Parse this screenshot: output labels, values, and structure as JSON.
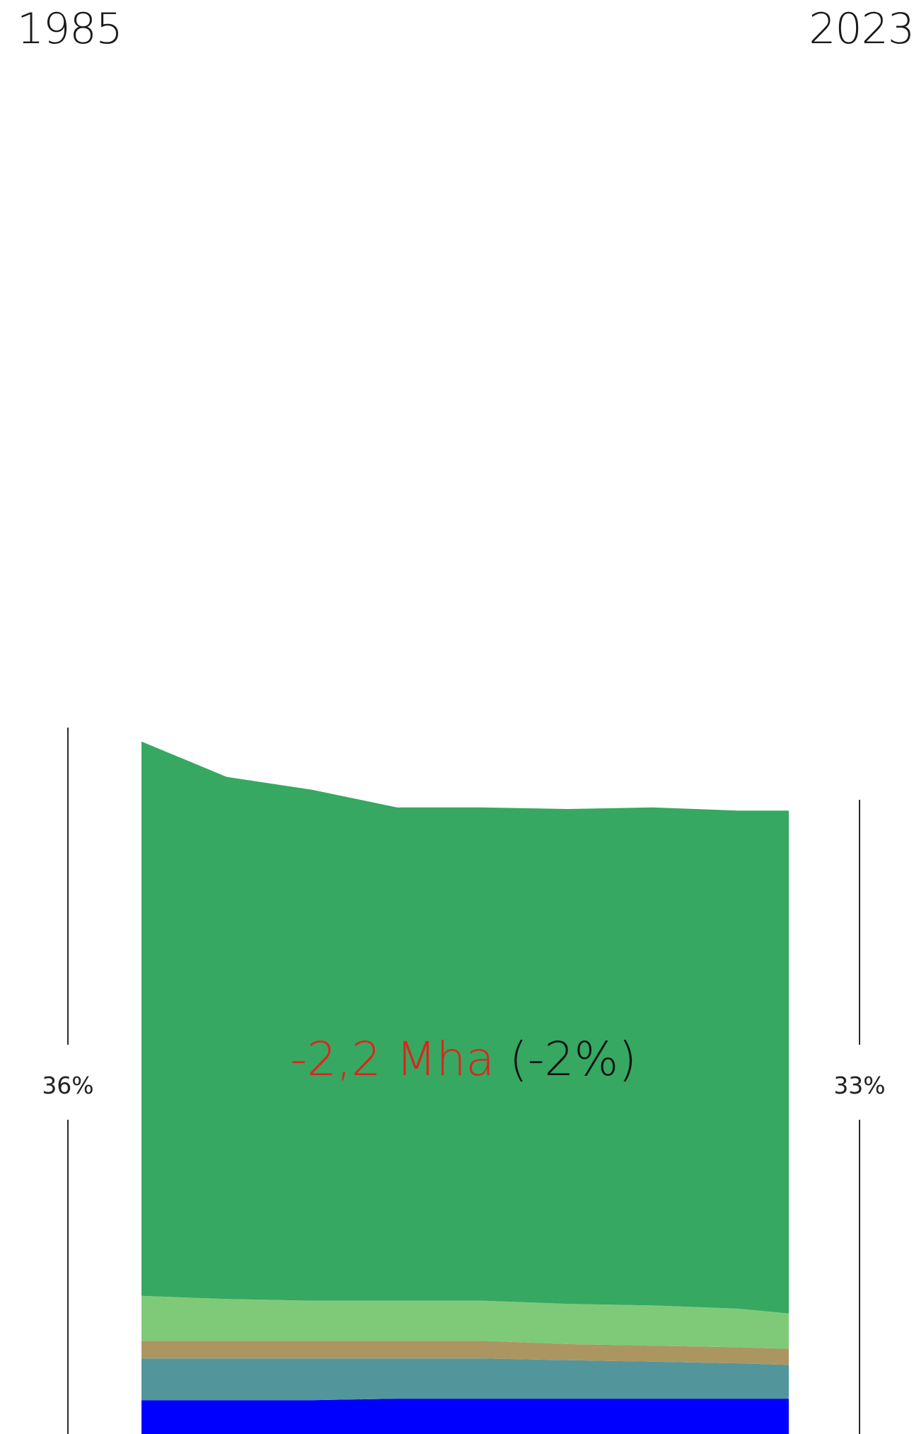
{
  "header": {
    "start_year": "1985",
    "end_year": "2023"
  },
  "side_labels": {
    "start_pct": "36%",
    "end_pct": "33%"
  },
  "change": {
    "delta": "-2,2 Mha",
    "percent": "(-2%)"
  },
  "chart_data": {
    "type": "area",
    "stacked": true,
    "x": [
      1985,
      1990,
      1995,
      2000,
      2005,
      2010,
      2015,
      2020,
      2023
    ],
    "series": [
      {
        "color": "#0000ff",
        "values": [
          2.1,
          2.1,
          2.1,
          2.2,
          2.2,
          2.2,
          2.2,
          2.2,
          2.2
        ]
      },
      {
        "color": "#52969b",
        "values": [
          2.6,
          2.6,
          2.6,
          2.5,
          2.5,
          2.4,
          2.3,
          2.2,
          2.1
        ]
      },
      {
        "color": "#ab9662",
        "values": [
          1.1,
          1.1,
          1.1,
          1.1,
          1.1,
          1.0,
          1.0,
          1.0,
          1.0
        ]
      },
      {
        "color": "#7fca79",
        "values": [
          2.8,
          2.6,
          2.5,
          2.5,
          2.5,
          2.5,
          2.5,
          2.4,
          2.2
        ]
      },
      {
        "color": "#36a862",
        "values": [
          34.5,
          32.5,
          31.8,
          30.7,
          30.7,
          30.8,
          31.0,
          31.0,
          31.3
        ]
      }
    ]
  }
}
